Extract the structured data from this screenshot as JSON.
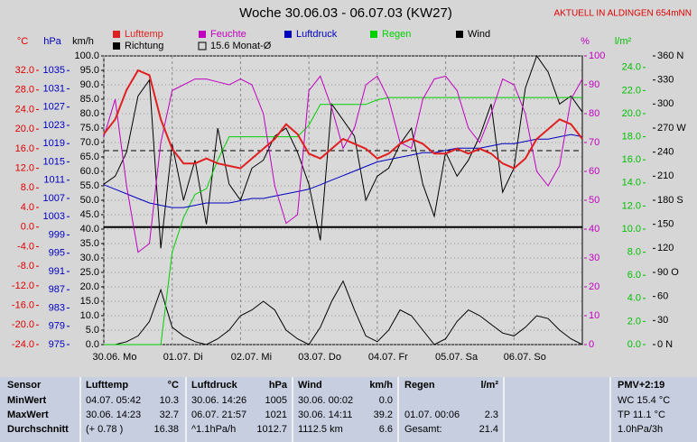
{
  "chart_data": {
    "type": "line",
    "title": "Woche 30.06.03 - 06.07.03 (KW27)",
    "subtitle": "AKTUELL IN ALDINGEN 654mNN",
    "x": [
      0,
      4,
      8,
      12,
      16,
      20,
      24,
      28,
      32,
      36,
      40,
      44,
      48,
      52,
      56,
      60,
      64,
      68,
      72,
      76,
      80,
      84,
      88,
      92,
      96,
      100,
      104,
      108,
      112,
      116,
      120,
      124,
      128,
      132,
      136,
      140,
      144,
      148,
      152,
      156,
      160,
      164,
      168
    ],
    "xlim": [
      0,
      168
    ],
    "xticks": [
      {
        "value": 0,
        "label": "30.06. Mo"
      },
      {
        "value": 24,
        "label": "01.07. Di"
      },
      {
        "value": 48,
        "label": "02.07. Mi"
      },
      {
        "value": 72,
        "label": "03.07. Do"
      },
      {
        "value": 96,
        "label": "04.07. Fr"
      },
      {
        "value": 120,
        "label": "05.07. Sa"
      },
      {
        "value": 144,
        "label": "06.07. So"
      }
    ],
    "axes": [
      {
        "label": "°C",
        "color": "#e00000",
        "lim": [
          -24,
          34.95
        ],
        "ticks": [
          {
            "value": -24,
            "label": "-24.0"
          },
          {
            "value": -20,
            "label": "-20.0"
          },
          {
            "value": -16,
            "label": "-16.0"
          },
          {
            "value": -12,
            "label": "-12.0"
          },
          {
            "value": -8,
            "label": "-8.0"
          },
          {
            "value": -4,
            "label": "-4.0"
          },
          {
            "value": 0,
            "label": "0.0"
          },
          {
            "value": 4,
            "label": "4.0"
          },
          {
            "value": 8,
            "label": "8.0"
          },
          {
            "value": 12,
            "label": "12.0"
          },
          {
            "value": 16,
            "label": "16.0"
          },
          {
            "value": 20,
            "label": "20.0"
          },
          {
            "value": 24,
            "label": "24.0"
          },
          {
            "value": 28,
            "label": "28.0"
          },
          {
            "value": 32,
            "label": "32.0"
          }
        ]
      },
      {
        "label": "hPa",
        "color": "#0000c0",
        "lim": [
          975,
          1038.2
        ],
        "ticks": [
          975,
          979,
          983,
          987,
          991,
          995,
          999,
          1003,
          1007,
          1011,
          1015,
          1019,
          1023,
          1027,
          1031,
          1035
        ]
      },
      {
        "label": "km/h",
        "color": "#000000",
        "lim": [
          0,
          100
        ],
        "grid": true,
        "ticks": [
          {
            "value": 0,
            "label": "0.0"
          },
          {
            "value": 5,
            "label": "5.0"
          },
          {
            "value": 10,
            "label": "10.0"
          },
          {
            "value": 15,
            "label": "15.0"
          },
          {
            "value": 20,
            "label": "20.0"
          },
          {
            "value": 25,
            "label": "25.0"
          },
          {
            "value": 30,
            "label": "30.0"
          },
          {
            "value": 35,
            "label": "35.0"
          },
          {
            "value": 40,
            "label": "40.0"
          },
          {
            "value": 45,
            "label": "45.0"
          },
          {
            "value": 50,
            "label": "50.0"
          },
          {
            "value": 55,
            "label": "55.0"
          },
          {
            "value": 60,
            "label": "60.0"
          },
          {
            "value": 65,
            "label": "65.0"
          },
          {
            "value": 70,
            "label": "70.0"
          },
          {
            "value": 75,
            "label": "75.0"
          },
          {
            "value": 80,
            "label": "80.0"
          },
          {
            "value": 85,
            "label": "85.0"
          },
          {
            "value": 90,
            "label": "90.0"
          },
          {
            "value": 95,
            "label": "95.0"
          },
          {
            "value": 100,
            "label": "100.0"
          }
        ]
      },
      {
        "label": "%",
        "color": "#c000c0",
        "lim": [
          0,
          100
        ],
        "ticks": [
          0,
          10,
          20,
          30,
          40,
          50,
          60,
          70,
          80,
          90,
          100
        ]
      },
      {
        "label": "l/m²",
        "color": "#00c000",
        "lim": [
          0,
          25
        ],
        "ticks": [
          {
            "value": 0,
            "label": "0.0"
          },
          {
            "value": 2,
            "label": "2.0"
          },
          {
            "value": 4,
            "label": "4.0"
          },
          {
            "value": 6,
            "label": "6.0"
          },
          {
            "value": 8,
            "label": "8.0"
          },
          {
            "value": 10,
            "label": "10.0"
          },
          {
            "value": 12,
            "label": "12.0"
          },
          {
            "value": 14,
            "label": "14.0"
          },
          {
            "value": 16,
            "label": "16.0"
          },
          {
            "value": 18,
            "label": "18.0"
          },
          {
            "value": 20,
            "label": "20.0"
          },
          {
            "value": 22,
            "label": "22.0"
          },
          {
            "value": 24,
            "label": "24.0"
          }
        ]
      },
      {
        "color": "#000000",
        "lim": [
          0,
          360
        ],
        "ticks": [
          {
            "value": 0,
            "label": "0 N"
          },
          30,
          60,
          {
            "value": 90,
            "label": "90 O"
          },
          120,
          150,
          {
            "value": 180,
            "label": "180 S"
          },
          210,
          240,
          {
            "value": 270,
            "label": "270 W"
          },
          300,
          330,
          {
            "value": 360,
            "label": "360 N"
          }
        ]
      }
    ],
    "series": [
      {
        "name": "Lufttemp",
        "color": "#e02020",
        "axis": 0,
        "width": 2,
        "values": [
          19,
          22,
          28,
          32,
          31,
          22,
          16,
          13,
          13,
          14,
          13,
          12.5,
          12,
          14,
          16,
          18,
          21,
          19,
          15,
          14,
          16,
          18,
          17,
          16,
          14,
          15,
          17,
          18,
          17,
          15,
          15,
          16,
          15,
          16,
          15,
          13,
          12,
          14,
          18,
          20,
          22,
          21,
          18
        ]
      },
      {
        "name": "Feuchte",
        "color": "#c000c0",
        "axis": 3,
        "width": 1,
        "values": [
          72,
          85,
          55,
          32,
          35,
          70,
          88,
          90,
          92,
          92,
          91,
          90,
          92,
          90,
          80,
          55,
          42,
          45,
          88,
          93,
          82,
          68,
          75,
          90,
          93,
          85,
          70,
          68,
          85,
          92,
          93,
          88,
          75,
          70,
          80,
          92,
          90,
          80,
          60,
          55,
          62,
          85,
          92
        ]
      },
      {
        "name": "Luftdruck",
        "color": "#0000c0",
        "axis": 1,
        "width": 1,
        "values": [
          1010,
          1009,
          1008,
          1007,
          1006,
          1005.5,
          1005,
          1005,
          1005.5,
          1006,
          1006,
          1006,
          1006.5,
          1007,
          1007,
          1007.5,
          1008,
          1008.5,
          1009,
          1010,
          1011,
          1012,
          1013,
          1014,
          1015,
          1015.5,
          1016,
          1016.5,
          1017,
          1017,
          1017.5,
          1018,
          1018,
          1018,
          1018.5,
          1019,
          1019,
          1019.5,
          1020,
          1020,
          1020.5,
          1021,
          1020.5
        ]
      },
      {
        "name": "Regen",
        "color": "#00d000",
        "axis": 4,
        "width": 1,
        "values": [
          0,
          0,
          0,
          0,
          0,
          0,
          8,
          11,
          13,
          13.5,
          16,
          18,
          18,
          18,
          18,
          18,
          18,
          18,
          19,
          20.8,
          20.8,
          20.8,
          20.8,
          20.8,
          21.2,
          21.4,
          21.4,
          21.4,
          21.4,
          21.4,
          21.4,
          21.4,
          21.4,
          21.4,
          21.4,
          21.4,
          21.4,
          21.4,
          21.4,
          21.4,
          21.4,
          21.4,
          21.4
        ]
      },
      {
        "name": "Wind",
        "color": "#000000",
        "axis": 2,
        "width": 1,
        "values": [
          0,
          0,
          1,
          3,
          8,
          19,
          6,
          3,
          1,
          0,
          2,
          5,
          10,
          12,
          15,
          12,
          5,
          2,
          0,
          6,
          15,
          22,
          12,
          3,
          1,
          5,
          12,
          10,
          5,
          0,
          2,
          8,
          12,
          10,
          7,
          4,
          3,
          6,
          10,
          9,
          5,
          2,
          0
        ]
      },
      {
        "name": "Richtung",
        "color": "#000000",
        "axis": 5,
        "width": 1,
        "values": [
          200,
          210,
          240,
          310,
          330,
          120,
          250,
          180,
          230,
          150,
          270,
          200,
          180,
          220,
          230,
          260,
          270,
          240,
          200,
          130,
          300,
          280,
          260,
          180,
          210,
          220,
          250,
          270,
          200,
          160,
          240,
          210,
          230,
          260,
          300,
          190,
          220,
          320,
          360,
          340,
          300,
          310,
          290
        ]
      }
    ],
    "reference": {
      "name": "15.6 Monat-Ø",
      "value": 15.6,
      "axis": 0
    }
  },
  "table": {
    "header": [
      "Sensor",
      "Lufttemp",
      "°C",
      "Luftdruck",
      "hPa",
      "Wind",
      "km/h",
      "Regen",
      "l/m²",
      "PMV+2:19"
    ],
    "rows": [
      [
        "MinWert",
        "04.07.  05:42",
        "10.3",
        "30.06.  14:26",
        "1005",
        "30.06.  00:02",
        "0.0",
        null,
        null,
        "WC 15.4 °C"
      ],
      [
        "MaxWert",
        "30.06.  14:23",
        "32.7",
        "06.07.  21:57",
        "1021",
        "30.06.  14:11",
        "39.2",
        "01.07.  00:06",
        "2.3",
        "TP 11.1 °C"
      ],
      [
        "Durchschnitt",
        "(+ 0.78 )",
        "16.38",
        "^1.1hPa/h",
        "1012.7",
        "1112.5 km",
        "6.6",
        "Gesamt:",
        "21.4",
        "1.0hPa/3h"
      ]
    ]
  }
}
